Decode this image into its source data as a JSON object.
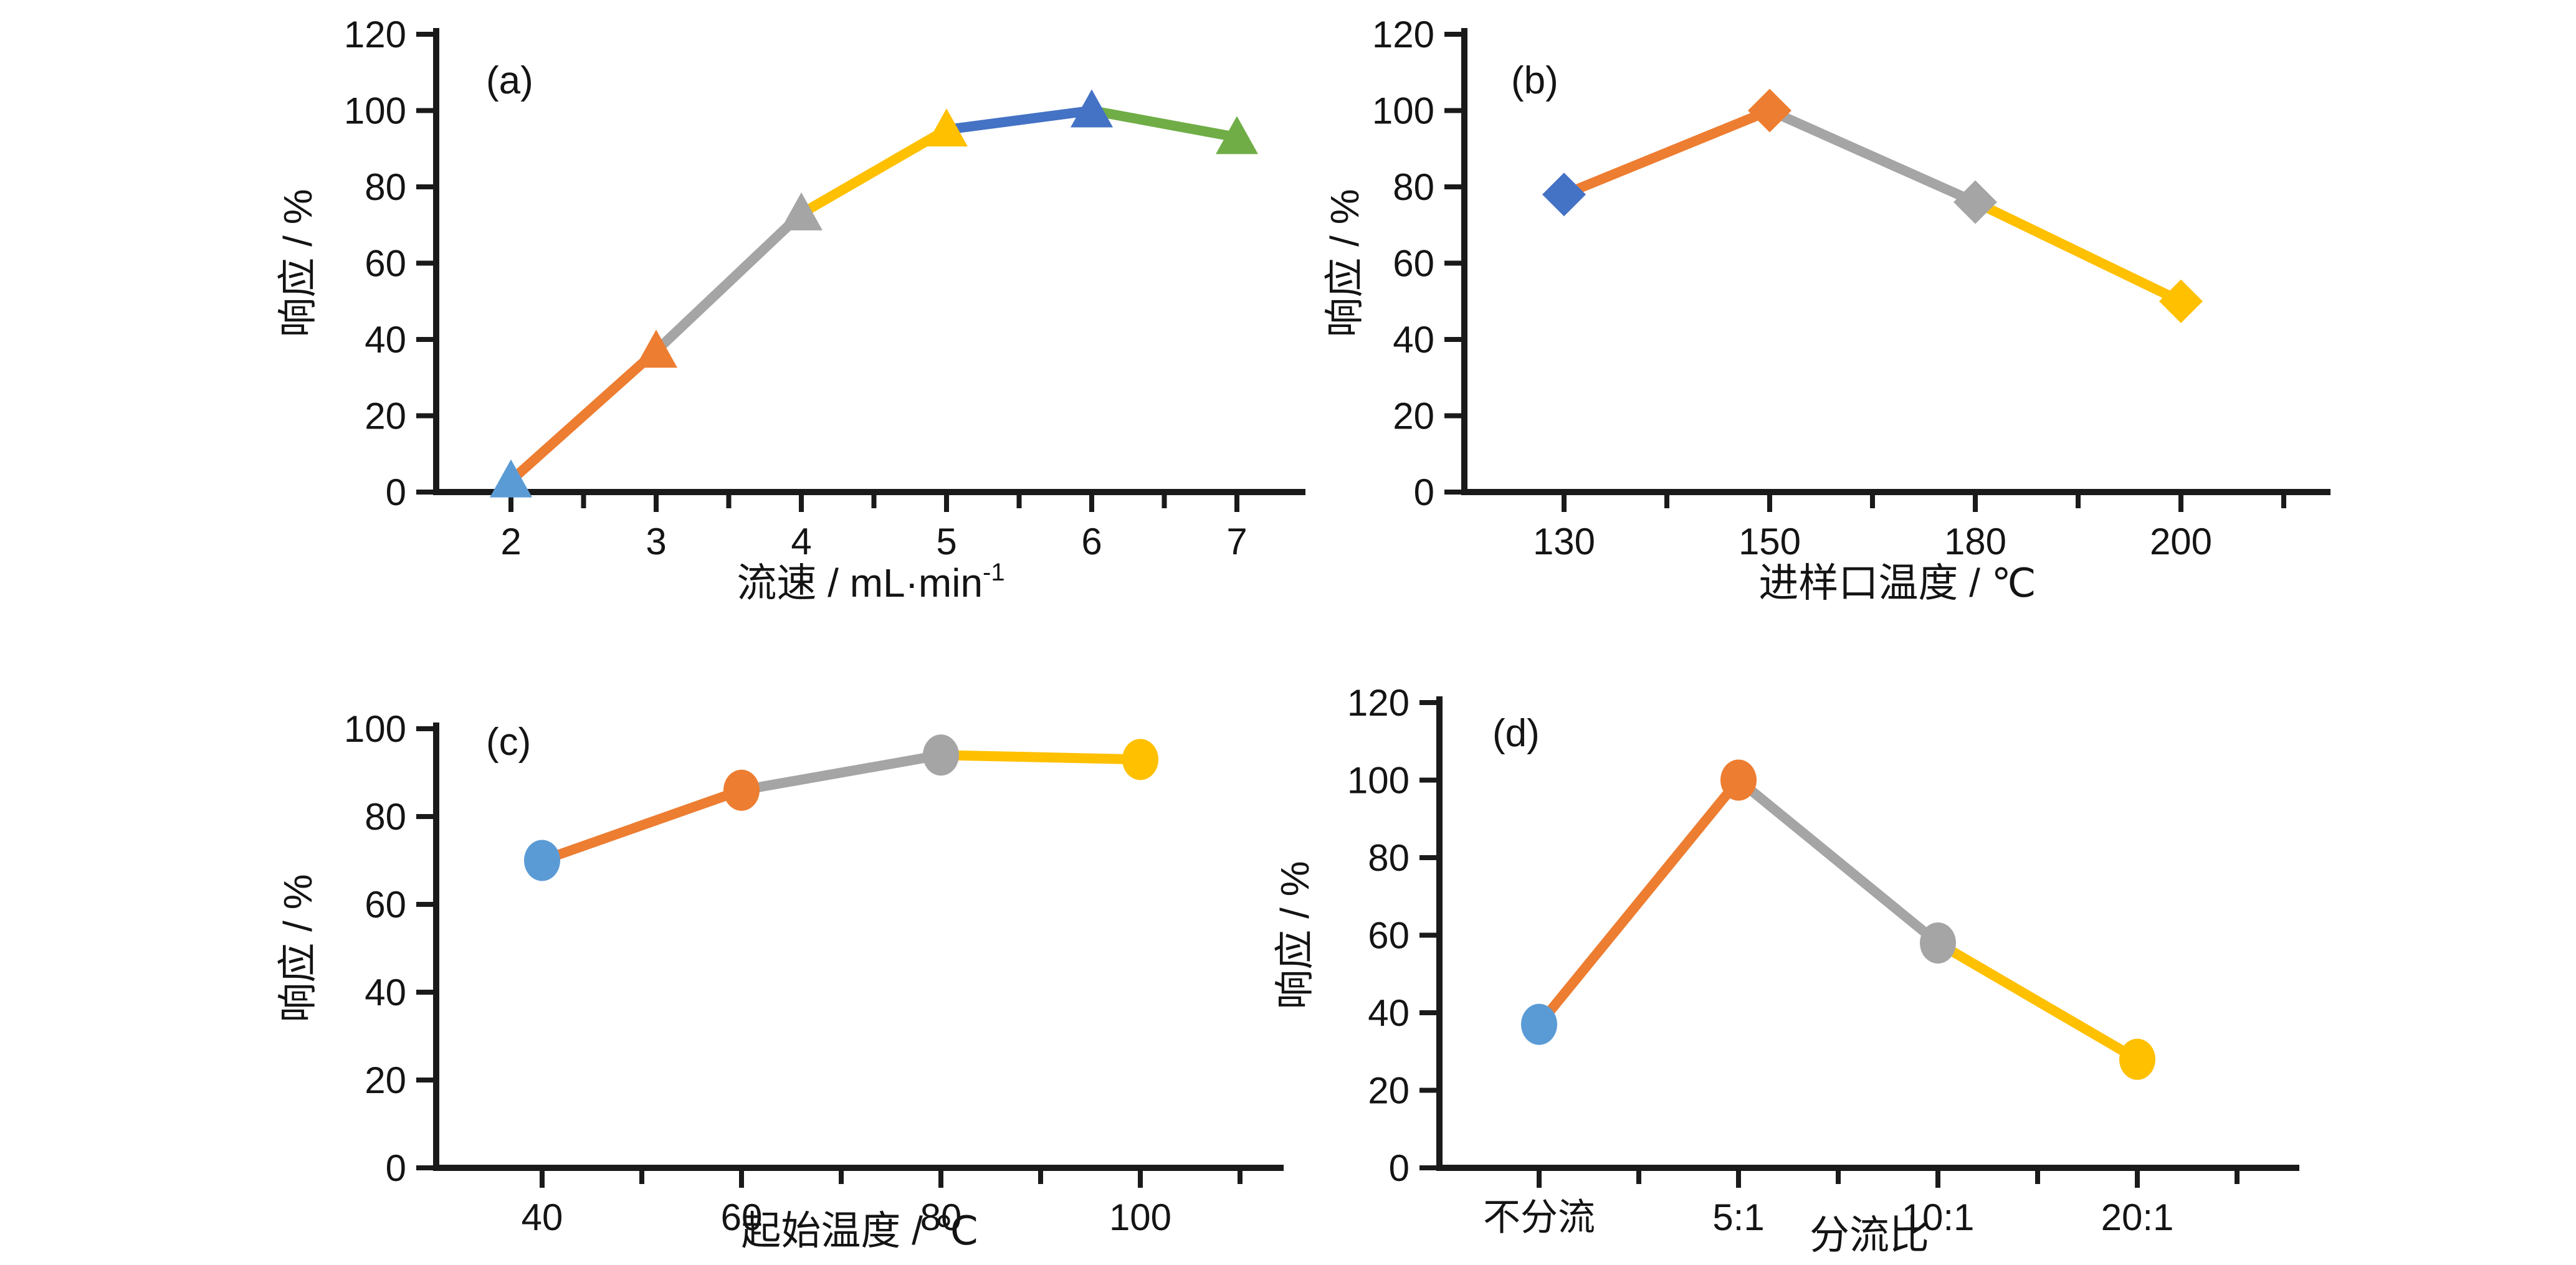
{
  "figure": {
    "background": "#ffffff",
    "axis_color": "#1a1a1a",
    "text_color": "#141414"
  },
  "chart_data": [
    {
      "id": "a",
      "panel_label": "(a)",
      "type": "line",
      "marker_shape": "triangle",
      "categories": [
        "2",
        "3",
        "4",
        "5",
        "6",
        "7"
      ],
      "values": [
        3,
        37,
        73,
        95,
        100,
        93
      ],
      "xlabel": "流速 / mL·min",
      "xlabel_sup": "-1",
      "ylabel": "响应 / %",
      "ylim": [
        0,
        120
      ],
      "yticks": [
        0,
        20,
        40,
        60,
        80,
        100,
        120
      ],
      "grid": false,
      "legend": "none",
      "marker_colors": [
        "#5B9BD5",
        "#ED7D31",
        "#A5A5A5",
        "#FFC000",
        "#4472C4",
        "#70AD47"
      ],
      "segment_colors": [
        "#ED7D31",
        "#A5A5A5",
        "#FFC000",
        "#4472C4",
        "#70AD47"
      ]
    },
    {
      "id": "b",
      "panel_label": "(b)",
      "type": "line",
      "marker_shape": "diamond",
      "categories": [
        "130",
        "150",
        "180",
        "200"
      ],
      "values": [
        78,
        100,
        76,
        50
      ],
      "xlabel": "进样口温度 / ℃",
      "xlabel_sup": "",
      "ylabel": "响应 / %",
      "ylim": [
        0,
        120
      ],
      "yticks": [
        0,
        20,
        40,
        60,
        80,
        100,
        120
      ],
      "grid": false,
      "legend": "none",
      "marker_colors": [
        "#4472C4",
        "#ED7D31",
        "#A5A5A5",
        "#FFC000"
      ],
      "segment_colors": [
        "#ED7D31",
        "#A5A5A5",
        "#FFC000"
      ]
    },
    {
      "id": "c",
      "panel_label": "(c)",
      "type": "line",
      "marker_shape": "circle",
      "categories": [
        "40",
        "60",
        "80",
        "100"
      ],
      "values": [
        70,
        86,
        94,
        93
      ],
      "xlabel": "起始温度 / ℃",
      "xlabel_sup": "",
      "ylabel": "响应 / %",
      "ylim": [
        0,
        100
      ],
      "yticks": [
        0,
        20,
        40,
        60,
        80,
        100
      ],
      "grid": false,
      "legend": "none",
      "marker_colors": [
        "#5B9BD5",
        "#ED7D31",
        "#A5A5A5",
        "#FFC000"
      ],
      "segment_colors": [
        "#ED7D31",
        "#A5A5A5",
        "#FFC000"
      ]
    },
    {
      "id": "d",
      "panel_label": "(d)",
      "type": "line",
      "marker_shape": "circle",
      "categories": [
        "不分流",
        "5:1",
        "10:1",
        "20:1"
      ],
      "values": [
        37,
        100,
        58,
        28
      ],
      "xlabel": "分流比",
      "xlabel_sup": "",
      "ylabel": "响应 / %",
      "ylim": [
        0,
        120
      ],
      "yticks": [
        0,
        20,
        40,
        60,
        80,
        100,
        120
      ],
      "grid": false,
      "legend": "none",
      "marker_colors": [
        "#5B9BD5",
        "#ED7D31",
        "#A5A5A5",
        "#FFC000"
      ],
      "segment_colors": [
        "#ED7D31",
        "#A5A5A5",
        "#FFC000"
      ]
    }
  ]
}
